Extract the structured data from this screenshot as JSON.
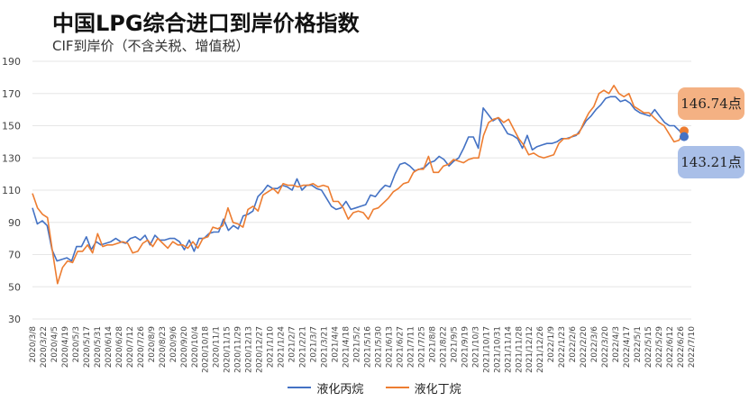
{
  "title": "中国LPG综合进口到岸价格指数",
  "subtitle": "CIF到岸价（不含关税、增值税）",
  "callouts": {
    "butane_value": "146.74点",
    "propane_value": "143.21点"
  },
  "legend": {
    "propane": "液化丙烷",
    "butane": "液化丁烷"
  },
  "colors": {
    "propane": "#4472c4",
    "butane": "#ed7d31",
    "grid": "#e6e6e6",
    "axis_text": "#444444"
  },
  "chart_data": {
    "type": "line",
    "ylim": [
      30,
      190
    ],
    "yticks": [
      30,
      50,
      70,
      90,
      110,
      130,
      150,
      170,
      190
    ],
    "grid": true,
    "legend_position": "bottom",
    "x_ticks": [
      "2020/3/8",
      "2020/3/22",
      "2020/4/5",
      "2020/4/19",
      "2020/5/3",
      "2020/5/17",
      "2020/5/31",
      "2020/6/14",
      "2020/6/28",
      "2020/7/12",
      "2020/7/26",
      "2020/8/9",
      "2020/8/23",
      "2020/9/6",
      "2020/9/20",
      "2020/10/4",
      "2020/10/18",
      "2020/11/1",
      "2020/11/15",
      "2020/11/29",
      "2020/12/13",
      "2020/12/27",
      "2021/1/10",
      "2021/1/24",
      "2021/2/7",
      "2021/2/21",
      "2021/3/7",
      "2021/3/21",
      "2021/4/4",
      "2021/4/18",
      "2021/5/2",
      "2021/5/16",
      "2021/5/30",
      "2021/6/13",
      "2021/6/27",
      "2021/7/11",
      "2021/7/25",
      "2021/8/8",
      "2021/8/22",
      "2021/9/5",
      "2021/9/19",
      "2021/10/3",
      "2021/10/17",
      "2021/10/31",
      "2021/11/14",
      "2021/11/28",
      "2021/12/12",
      "2021/12/26",
      "2022/1/9",
      "2022/1/23",
      "2022/2/6",
      "2022/2/20",
      "2022/3/6",
      "2022/3/20",
      "2022/4/3",
      "2022/4/17",
      "2022/5/1",
      "2022/5/15",
      "2022/5/29",
      "2022/6/12",
      "2022/6/26",
      "2022/7/10"
    ],
    "series": [
      {
        "name": "液化丙烷",
        "values": [
          99,
          89,
          91,
          88,
          73,
          66,
          67,
          68,
          66,
          75,
          75,
          81,
          73,
          78,
          76,
          77,
          78,
          80,
          78,
          77,
          80,
          81,
          79,
          82,
          76,
          82,
          79,
          79,
          80,
          80,
          78,
          73,
          79,
          72,
          80,
          80,
          83,
          84,
          84,
          92,
          85,
          88,
          86,
          94,
          95,
          97,
          106,
          109,
          113,
          111,
          111,
          113,
          112,
          110,
          117,
          110,
          113,
          113,
          111,
          110,
          105,
          100,
          98,
          99,
          103,
          98,
          99,
          100,
          101,
          107,
          106,
          110,
          113,
          112,
          120,
          126,
          127,
          125,
          122,
          123,
          124,
          127,
          128,
          131,
          129,
          125,
          128,
          130,
          136,
          143,
          143,
          136,
          161,
          157,
          153,
          155,
          150,
          145,
          144,
          142,
          136,
          144,
          135,
          137,
          138,
          139,
          139,
          140,
          142,
          142,
          143,
          144,
          148,
          153,
          156,
          160,
          163,
          167,
          168,
          168,
          165,
          166,
          164,
          160,
          158,
          157,
          156,
          160,
          156,
          152,
          150,
          150,
          147,
          143.21
        ],
        "endpoint": 143.21
      },
      {
        "name": "液化丁烷",
        "values": [
          108,
          99,
          95,
          93,
          72,
          52,
          62,
          66,
          65,
          72,
          72,
          76,
          71,
          83,
          75,
          76,
          76,
          77,
          78,
          77,
          71,
          72,
          77,
          79,
          75,
          80,
          77,
          74,
          78,
          76,
          76,
          74,
          78,
          74,
          80,
          81,
          87,
          86,
          88,
          99,
          90,
          89,
          87,
          98,
          100,
          97,
          107,
          109,
          111,
          108,
          114,
          113,
          113,
          112,
          113,
          113,
          114,
          112,
          113,
          112,
          103,
          103,
          99,
          92,
          96,
          97,
          96,
          92,
          98,
          99,
          102,
          105,
          109,
          111,
          114,
          115,
          121,
          123,
          123,
          131,
          121,
          121,
          125,
          126,
          129,
          128,
          127,
          129,
          130,
          130,
          144,
          152,
          154,
          155,
          152,
          154,
          148,
          142,
          138,
          132,
          133,
          131,
          130,
          131,
          132,
          139,
          142,
          142,
          144,
          145,
          152,
          158,
          162,
          170,
          172,
          170,
          175,
          170,
          168,
          170,
          162,
          160,
          158,
          158,
          155,
          152,
          150,
          145,
          140,
          141,
          146.74
        ],
        "endpoint": 146.74
      }
    ]
  }
}
